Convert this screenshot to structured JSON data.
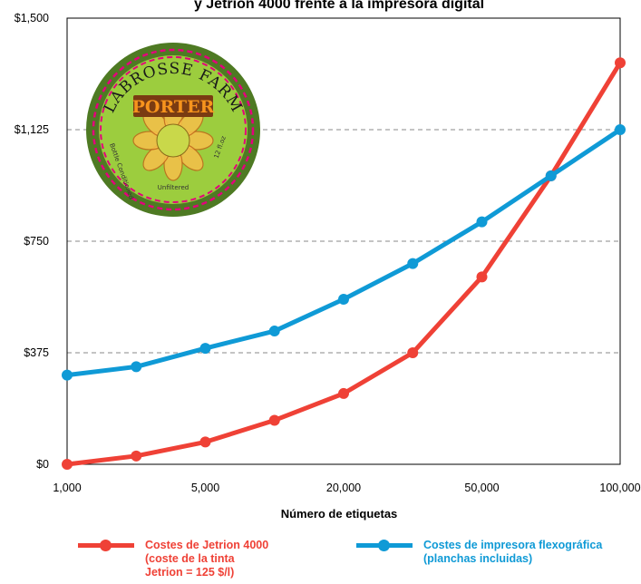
{
  "chart_data": {
    "type": "line",
    "title": "y Jetrion 4000 frente a la impresora digital",
    "xlabel": "Número de etiquetas",
    "ylabel": "",
    "categories": [
      "1,000",
      "",
      "5,000",
      "",
      "20,000",
      "",
      "50,000",
      "",
      "100,000"
    ],
    "y_ticks": [
      "$0",
      "$375",
      "$750",
      "$1,125",
      "$1,500"
    ],
    "ylim": [
      0,
      1500
    ],
    "grid": "horizontal dashed",
    "legend_position": "bottom",
    "series": [
      {
        "name": "Costes de Jetrion 4000\n(coste de la tinta\nJetrion = 125 $/l)",
        "color": "#ef4136",
        "values": [
          0,
          28,
          75,
          148,
          238,
          375,
          630,
          970,
          1350
        ]
      },
      {
        "name": "Costes de impresora flexográfica\n(planchas incluidas)",
        "color": "#0f9ad6",
        "values": [
          300,
          328,
          390,
          448,
          555,
          675,
          815,
          970,
          1125
        ]
      }
    ]
  },
  "badge": {
    "arc_text": "LABROSSE FARM",
    "title": "PORTER",
    "left_text": "Bottle Conditioned",
    "right_text": "12 fl.oz",
    "bottom_text": "Unfiltered",
    "outer_color": "#4e7a23",
    "inner_color": "#9ccd3e",
    "stitch_color": "#e4007c",
    "title_color": "#f7941d"
  }
}
